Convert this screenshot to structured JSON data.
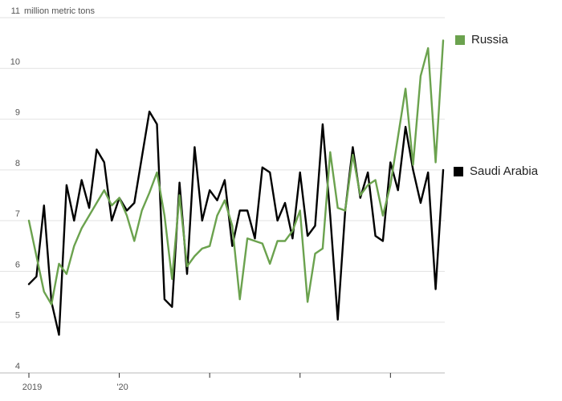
{
  "chart_data": {
    "type": "line",
    "title": "",
    "y_axis": {
      "unit_label": "million metric tons",
      "ticks": [
        4,
        5,
        6,
        7,
        8,
        9,
        10,
        11
      ],
      "range": [
        4,
        11
      ],
      "grid": true
    },
    "x_axis": {
      "tick_labels": [
        "2019",
        "'20",
        "",
        "",
        ""
      ],
      "frequency": "monthly"
    },
    "x": [
      "2019-01",
      "2019-02",
      "2019-03",
      "2019-04",
      "2019-05",
      "2019-06",
      "2019-07",
      "2019-08",
      "2019-09",
      "2019-10",
      "2019-11",
      "2019-12",
      "2020-01",
      "2020-02",
      "2020-03",
      "2020-04",
      "2020-05",
      "2020-06",
      "2020-07",
      "2020-08",
      "2020-09",
      "2020-10",
      "2020-11",
      "2020-12",
      "2021-01",
      "2021-02",
      "2021-03",
      "2021-04",
      "2021-05",
      "2021-06",
      "2021-07",
      "2021-08",
      "2021-09",
      "2021-10",
      "2021-11",
      "2021-12",
      "2022-01",
      "2022-02",
      "2022-03",
      "2022-04",
      "2022-05",
      "2022-06",
      "2022-07",
      "2022-08",
      "2022-09",
      "2022-10",
      "2022-11",
      "2022-12",
      "2023-01",
      "2023-02",
      "2023-03",
      "2023-04",
      "2023-05",
      "2023-06",
      "2023-07",
      "2023-08"
    ],
    "series": [
      {
        "name": "Saudi Arabia",
        "color": "#000000",
        "values": [
          5.75,
          5.9,
          7.3,
          5.4,
          4.75,
          7.7,
          7.0,
          7.8,
          7.25,
          8.4,
          8.15,
          7.0,
          7.45,
          7.2,
          7.35,
          8.25,
          9.15,
          8.9,
          5.45,
          5.3,
          7.75,
          5.95,
          8.45,
          7.0,
          7.6,
          7.4,
          7.8,
          6.5,
          7.2,
          7.2,
          6.65,
          8.05,
          7.95,
          7.0,
          7.35,
          6.65,
          7.95,
          6.7,
          6.9,
          8.9,
          7.1,
          5.05,
          7.2,
          8.45,
          7.45,
          7.95,
          6.7,
          6.6,
          8.15,
          7.6,
          8.85,
          8.0,
          7.35,
          7.95,
          5.65,
          8.0
        ]
      },
      {
        "name": "Russia",
        "color": "#6ba24e",
        "values": [
          7.0,
          6.3,
          5.6,
          5.35,
          6.15,
          5.95,
          6.5,
          6.85,
          7.1,
          7.35,
          7.6,
          7.3,
          7.45,
          7.1,
          6.6,
          7.2,
          7.55,
          7.95,
          7.1,
          5.85,
          7.5,
          6.1,
          6.3,
          6.45,
          6.5,
          7.1,
          7.4,
          6.9,
          5.45,
          6.65,
          6.6,
          6.55,
          6.15,
          6.6,
          6.6,
          6.8,
          7.2,
          5.4,
          6.35,
          6.45,
          8.35,
          7.25,
          7.2,
          8.3,
          7.5,
          7.7,
          7.8,
          7.1,
          7.7,
          8.65,
          9.6,
          8.1,
          9.85,
          10.4,
          8.15,
          10.55
        ]
      }
    ],
    "legend": {
      "position": "right-of-line-ends",
      "russia_label": "Russia",
      "saudi_label": "Saudi Arabia"
    }
  }
}
